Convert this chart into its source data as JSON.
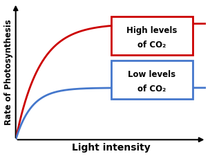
{
  "title": "",
  "xlabel": "Light intensity",
  "ylabel": "Rate of Photosynthesis",
  "background_color": "#ffffff",
  "grid_color": "#c8d8e8",
  "high_co2_color": "#cc0000",
  "low_co2_color": "#4477cc",
  "high_co2_label_line1": "High levels",
  "high_co2_label_line2": "of CO₂",
  "low_co2_label_line1": "Low levels",
  "low_co2_label_line2": "of CO₂",
  "high_co2_box_color": "#cc0000",
  "low_co2_box_color": "#4477cc",
  "xlim": [
    0,
    10
  ],
  "ylim": [
    0,
    10
  ],
  "xlabel_fontsize": 10,
  "ylabel_fontsize": 8.5,
  "label_fontsize": 8.5
}
